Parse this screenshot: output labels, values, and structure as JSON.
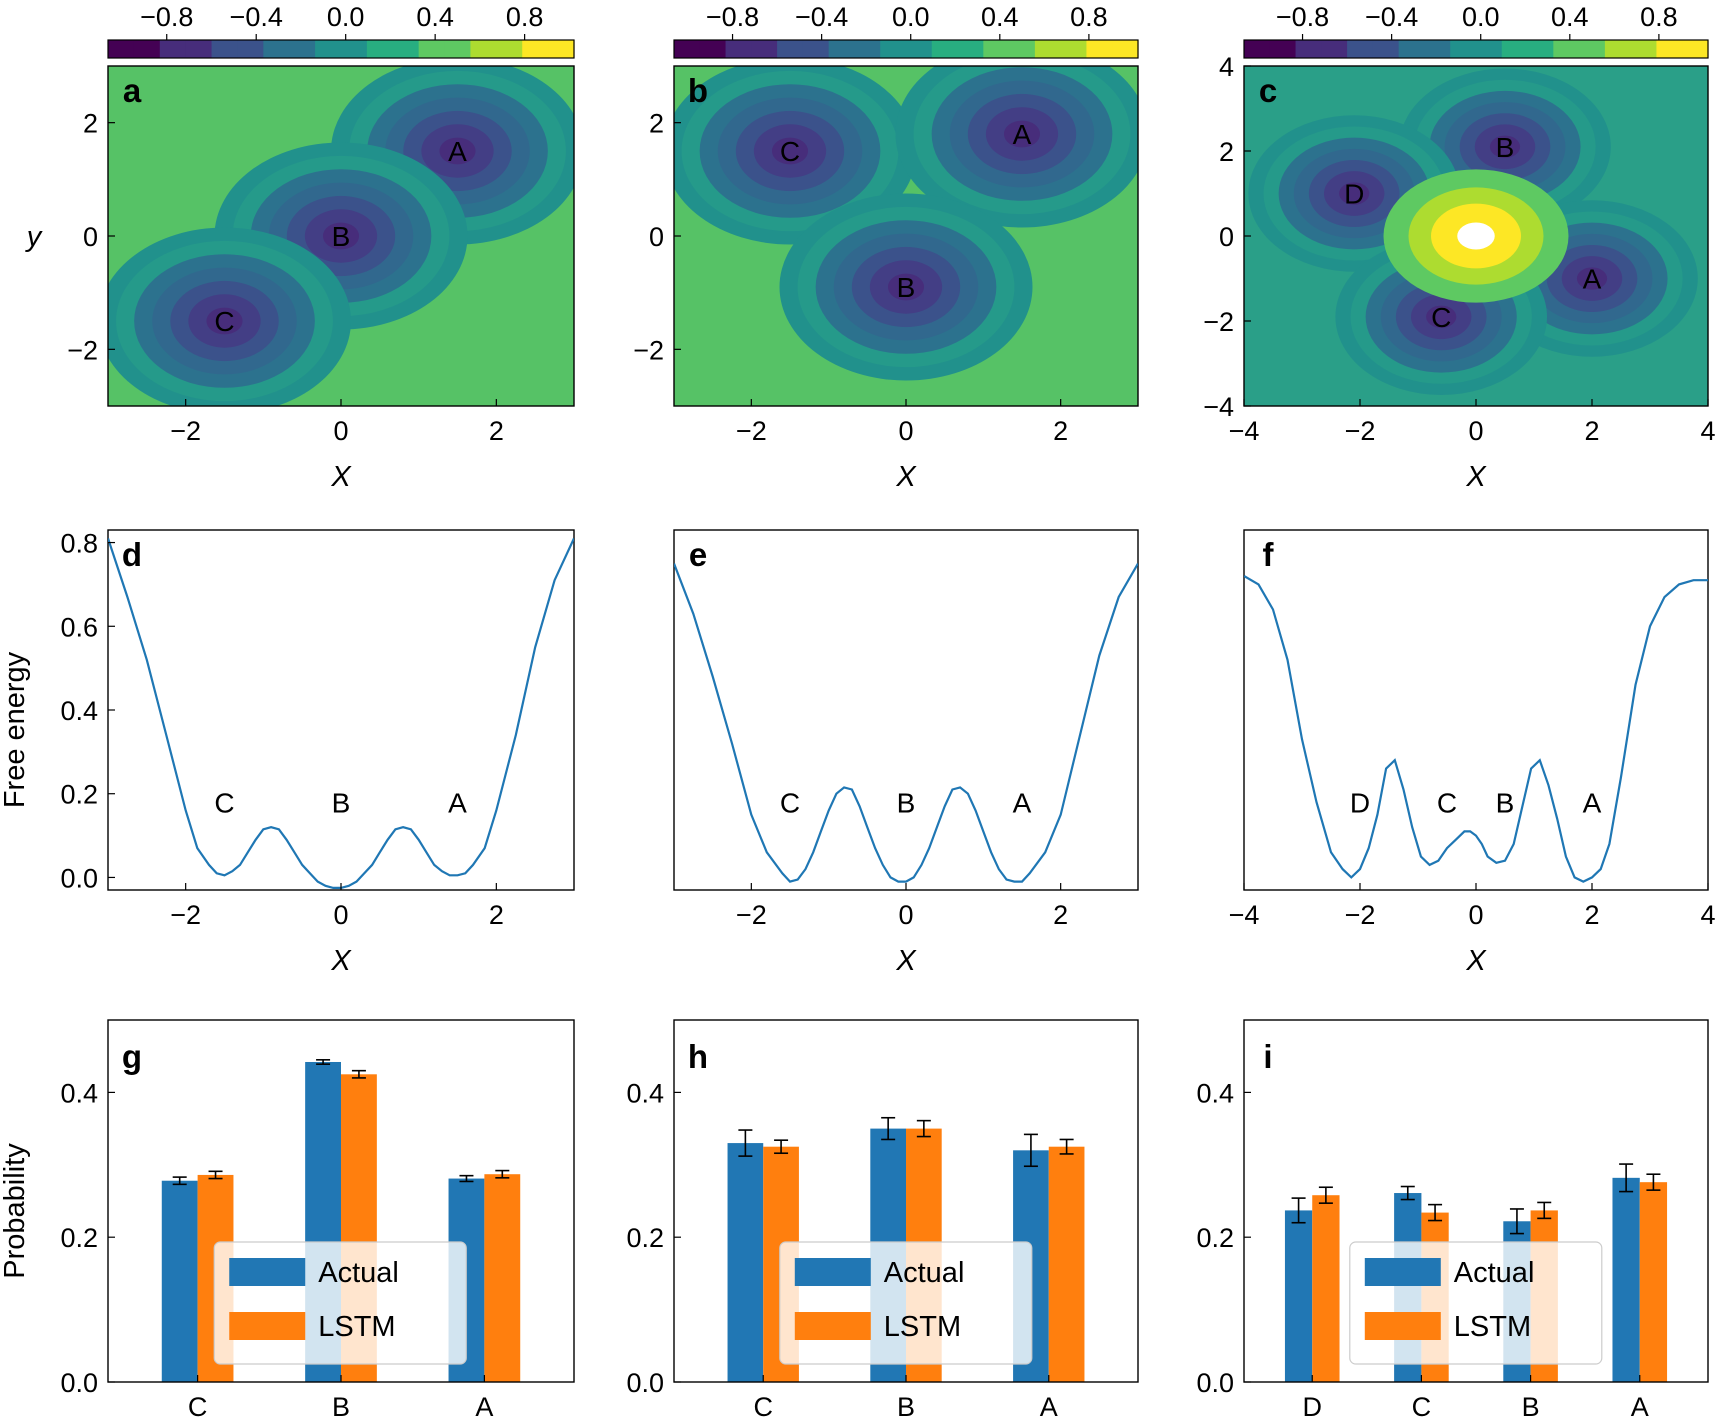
{
  "colors": {
    "series1": "#2177b4",
    "series2": "#ff7f0e",
    "line": "#1f77b4",
    "viridis": [
      "#440154",
      "#472d7b",
      "#3b528b",
      "#2c728e",
      "#21918c",
      "#28ae80",
      "#5ec962",
      "#addc30",
      "#fde725"
    ]
  },
  "colorbar_ticks": [
    "−0.8",
    "−0.4",
    "0.0",
    "0.4",
    "0.8"
  ],
  "contour_panels": [
    {
      "letter": "a",
      "ylabel": "y",
      "xlabel": "X",
      "xticks": [
        "−2",
        "0",
        "2"
      ],
      "yticks": [
        "−2",
        "0",
        "2"
      ],
      "xlim": [
        -3,
        3
      ],
      "ylim": [
        -3,
        3
      ],
      "states": [
        {
          "label": "A",
          "x": 1.5,
          "y": 1.5
        },
        {
          "label": "B",
          "x": 0.0,
          "y": 0.0
        },
        {
          "label": "C",
          "x": -1.5,
          "y": -1.5
        }
      ]
    },
    {
      "letter": "b",
      "ylabel": "",
      "xlabel": "X",
      "xticks": [
        "−2",
        "0",
        "2"
      ],
      "yticks": [
        "−2",
        "0",
        "2"
      ],
      "xlim": [
        -3,
        3
      ],
      "ylim": [
        -3,
        3
      ],
      "states": [
        {
          "label": "C",
          "x": -1.5,
          "y": 1.5
        },
        {
          "label": "A",
          "x": 1.5,
          "y": 1.8
        },
        {
          "label": "B",
          "x": 0.0,
          "y": -0.9
        }
      ]
    },
    {
      "letter": "c",
      "ylabel": "",
      "xlabel": "X",
      "xticks": [
        "−4",
        "−2",
        "0",
        "2",
        "4"
      ],
      "yticks": [
        "−4",
        "−2",
        "0",
        "2",
        "4"
      ],
      "xlim": [
        -4,
        4
      ],
      "ylim": [
        -4,
        4
      ],
      "states": [
        {
          "label": "B",
          "x": 0.5,
          "y": 2.1
        },
        {
          "label": "D",
          "x": -2.1,
          "y": 1.0
        },
        {
          "label": "A",
          "x": 2.0,
          "y": -1.0
        },
        {
          "label": "C",
          "x": -0.6,
          "y": -1.9
        }
      ]
    }
  ],
  "chart_data": [
    {
      "type": "line",
      "panel": "d",
      "xlabel": "X",
      "ylabel": "Free energy",
      "xlim": [
        -3,
        3
      ],
      "ylim": [
        -0.03,
        0.83
      ],
      "xticks": [
        "−2",
        "0",
        "2"
      ],
      "yticks": [
        "0.0",
        "0.2",
        "0.4",
        "0.6",
        "0.8"
      ],
      "x": [
        -3.0,
        -2.75,
        -2.5,
        -2.25,
        -2.0,
        -1.85,
        -1.7,
        -1.6,
        -1.5,
        -1.4,
        -1.3,
        -1.2,
        -1.1,
        -1.0,
        -0.9,
        -0.8,
        -0.7,
        -0.6,
        -0.5,
        -0.4,
        -0.3,
        -0.2,
        -0.1,
        0.0,
        0.1,
        0.2,
        0.3,
        0.4,
        0.5,
        0.6,
        0.7,
        0.8,
        0.9,
        1.0,
        1.1,
        1.2,
        1.3,
        1.4,
        1.5,
        1.6,
        1.7,
        1.85,
        2.0,
        2.25,
        2.5,
        2.75,
        3.0
      ],
      "y": [
        0.81,
        0.67,
        0.52,
        0.34,
        0.16,
        0.07,
        0.03,
        0.01,
        0.005,
        0.015,
        0.03,
        0.06,
        0.09,
        0.115,
        0.12,
        0.115,
        0.09,
        0.06,
        0.03,
        0.01,
        -0.01,
        -0.02,
        -0.025,
        -0.025,
        -0.02,
        -0.01,
        0.01,
        0.03,
        0.06,
        0.09,
        0.115,
        0.12,
        0.115,
        0.09,
        0.06,
        0.03,
        0.015,
        0.005,
        0.005,
        0.01,
        0.03,
        0.07,
        0.16,
        0.34,
        0.55,
        0.71,
        0.81
      ],
      "states": [
        {
          "label": "C",
          "x": -1.5,
          "y": 0.155
        },
        {
          "label": "B",
          "x": 0.0,
          "y": 0.155
        },
        {
          "label": "A",
          "x": 1.5,
          "y": 0.155
        }
      ]
    },
    {
      "type": "line",
      "panel": "e",
      "xlabel": "X",
      "ylabel": "",
      "xlim": [
        -3,
        3
      ],
      "ylim": [
        -0.03,
        0.83
      ],
      "xticks": [
        "−2",
        "0",
        "2"
      ],
      "yticks": [],
      "x": [
        -3.0,
        -2.75,
        -2.5,
        -2.25,
        -2.0,
        -1.8,
        -1.6,
        -1.5,
        -1.4,
        -1.3,
        -1.2,
        -1.1,
        -1.0,
        -0.9,
        -0.8,
        -0.7,
        -0.6,
        -0.5,
        -0.4,
        -0.3,
        -0.2,
        -0.1,
        0.0,
        0.1,
        0.2,
        0.3,
        0.4,
        0.5,
        0.6,
        0.7,
        0.8,
        0.9,
        1.0,
        1.1,
        1.2,
        1.3,
        1.4,
        1.5,
        1.6,
        1.8,
        2.0,
        2.25,
        2.5,
        2.75,
        3.0
      ],
      "y": [
        0.75,
        0.63,
        0.48,
        0.32,
        0.15,
        0.06,
        0.01,
        -0.01,
        -0.005,
        0.02,
        0.06,
        0.11,
        0.16,
        0.2,
        0.215,
        0.21,
        0.17,
        0.12,
        0.07,
        0.03,
        0.0,
        -0.01,
        -0.01,
        0.0,
        0.03,
        0.07,
        0.12,
        0.17,
        0.21,
        0.215,
        0.2,
        0.16,
        0.11,
        0.06,
        0.02,
        -0.005,
        -0.01,
        -0.01,
        0.01,
        0.06,
        0.15,
        0.34,
        0.53,
        0.67,
        0.75
      ],
      "states": [
        {
          "label": "C",
          "x": -1.5,
          "y": 0.155
        },
        {
          "label": "B",
          "x": 0.0,
          "y": 0.155
        },
        {
          "label": "A",
          "x": 1.5,
          "y": 0.155
        }
      ]
    },
    {
      "type": "line",
      "panel": "f",
      "xlabel": "X",
      "ylabel": "",
      "xlim": [
        -4,
        4
      ],
      "ylim": [
        -0.03,
        0.83
      ],
      "xticks": [
        "−4",
        "−2",
        "0",
        "2",
        "4"
      ],
      "yticks": [],
      "x": [
        -4.0,
        -3.75,
        -3.5,
        -3.25,
        -3.0,
        -2.75,
        -2.5,
        -2.3,
        -2.15,
        -2.0,
        -1.85,
        -1.7,
        -1.55,
        -1.4,
        -1.25,
        -1.1,
        -0.95,
        -0.8,
        -0.65,
        -0.5,
        -0.35,
        -0.2,
        -0.1,
        0.0,
        0.1,
        0.2,
        0.35,
        0.5,
        0.65,
        0.8,
        0.95,
        1.1,
        1.25,
        1.4,
        1.55,
        1.7,
        1.85,
        2.0,
        2.15,
        2.3,
        2.5,
        2.75,
        3.0,
        3.25,
        3.5,
        3.75,
        4.0
      ],
      "y": [
        0.72,
        0.7,
        0.64,
        0.52,
        0.33,
        0.18,
        0.06,
        0.02,
        0.0,
        0.02,
        0.07,
        0.15,
        0.26,
        0.28,
        0.21,
        0.12,
        0.05,
        0.03,
        0.04,
        0.07,
        0.09,
        0.11,
        0.11,
        0.1,
        0.08,
        0.05,
        0.035,
        0.04,
        0.08,
        0.17,
        0.26,
        0.28,
        0.22,
        0.14,
        0.05,
        0.0,
        -0.01,
        0.0,
        0.02,
        0.08,
        0.24,
        0.46,
        0.6,
        0.67,
        0.7,
        0.71,
        0.71
      ],
      "states": [
        {
          "label": "D",
          "x": -2.0,
          "y": 0.155
        },
        {
          "label": "C",
          "x": -0.5,
          "y": 0.155
        },
        {
          "label": "B",
          "x": 0.5,
          "y": 0.155
        },
        {
          "label": "A",
          "x": 2.0,
          "y": 0.155
        }
      ]
    },
    {
      "type": "bar",
      "panel": "g",
      "ylabel": "Probability",
      "ylim": [
        0,
        0.5
      ],
      "yticks": [
        "0.0",
        "0.2",
        "0.4"
      ],
      "categories": [
        "C",
        "B",
        "A"
      ],
      "series": [
        {
          "name": "Actual",
          "values": [
            0.278,
            0.442,
            0.281
          ],
          "errors": [
            0.005,
            0.003,
            0.004
          ]
        },
        {
          "name": "LSTM",
          "values": [
            0.286,
            0.425,
            0.287
          ],
          "errors": [
            0.005,
            0.005,
            0.005
          ]
        }
      ],
      "legend": "lower center"
    },
    {
      "type": "bar",
      "panel": "h",
      "ylabel": "",
      "ylim": [
        0,
        0.5
      ],
      "yticks": [
        "0.0",
        "0.2",
        "0.4"
      ],
      "categories": [
        "C",
        "B",
        "A"
      ],
      "series": [
        {
          "name": "Actual",
          "values": [
            0.33,
            0.35,
            0.32
          ],
          "errors": [
            0.018,
            0.015,
            0.022
          ]
        },
        {
          "name": "LSTM",
          "values": [
            0.325,
            0.35,
            0.325
          ],
          "errors": [
            0.009,
            0.011,
            0.01
          ]
        }
      ],
      "legend": "lower center"
    },
    {
      "type": "bar",
      "panel": "i",
      "ylabel": "",
      "ylim": [
        0,
        0.5
      ],
      "yticks": [
        "0.0",
        "0.2",
        "0.4"
      ],
      "categories": [
        "D",
        "C",
        "B",
        "A"
      ],
      "series": [
        {
          "name": "Actual",
          "values": [
            0.237,
            0.261,
            0.222,
            0.282
          ],
          "errors": [
            0.017,
            0.009,
            0.017,
            0.019
          ]
        },
        {
          "name": "LSTM",
          "values": [
            0.258,
            0.234,
            0.237,
            0.276
          ],
          "errors": [
            0.011,
            0.011,
            0.011,
            0.011
          ]
        }
      ],
      "legend": "lower center"
    }
  ]
}
